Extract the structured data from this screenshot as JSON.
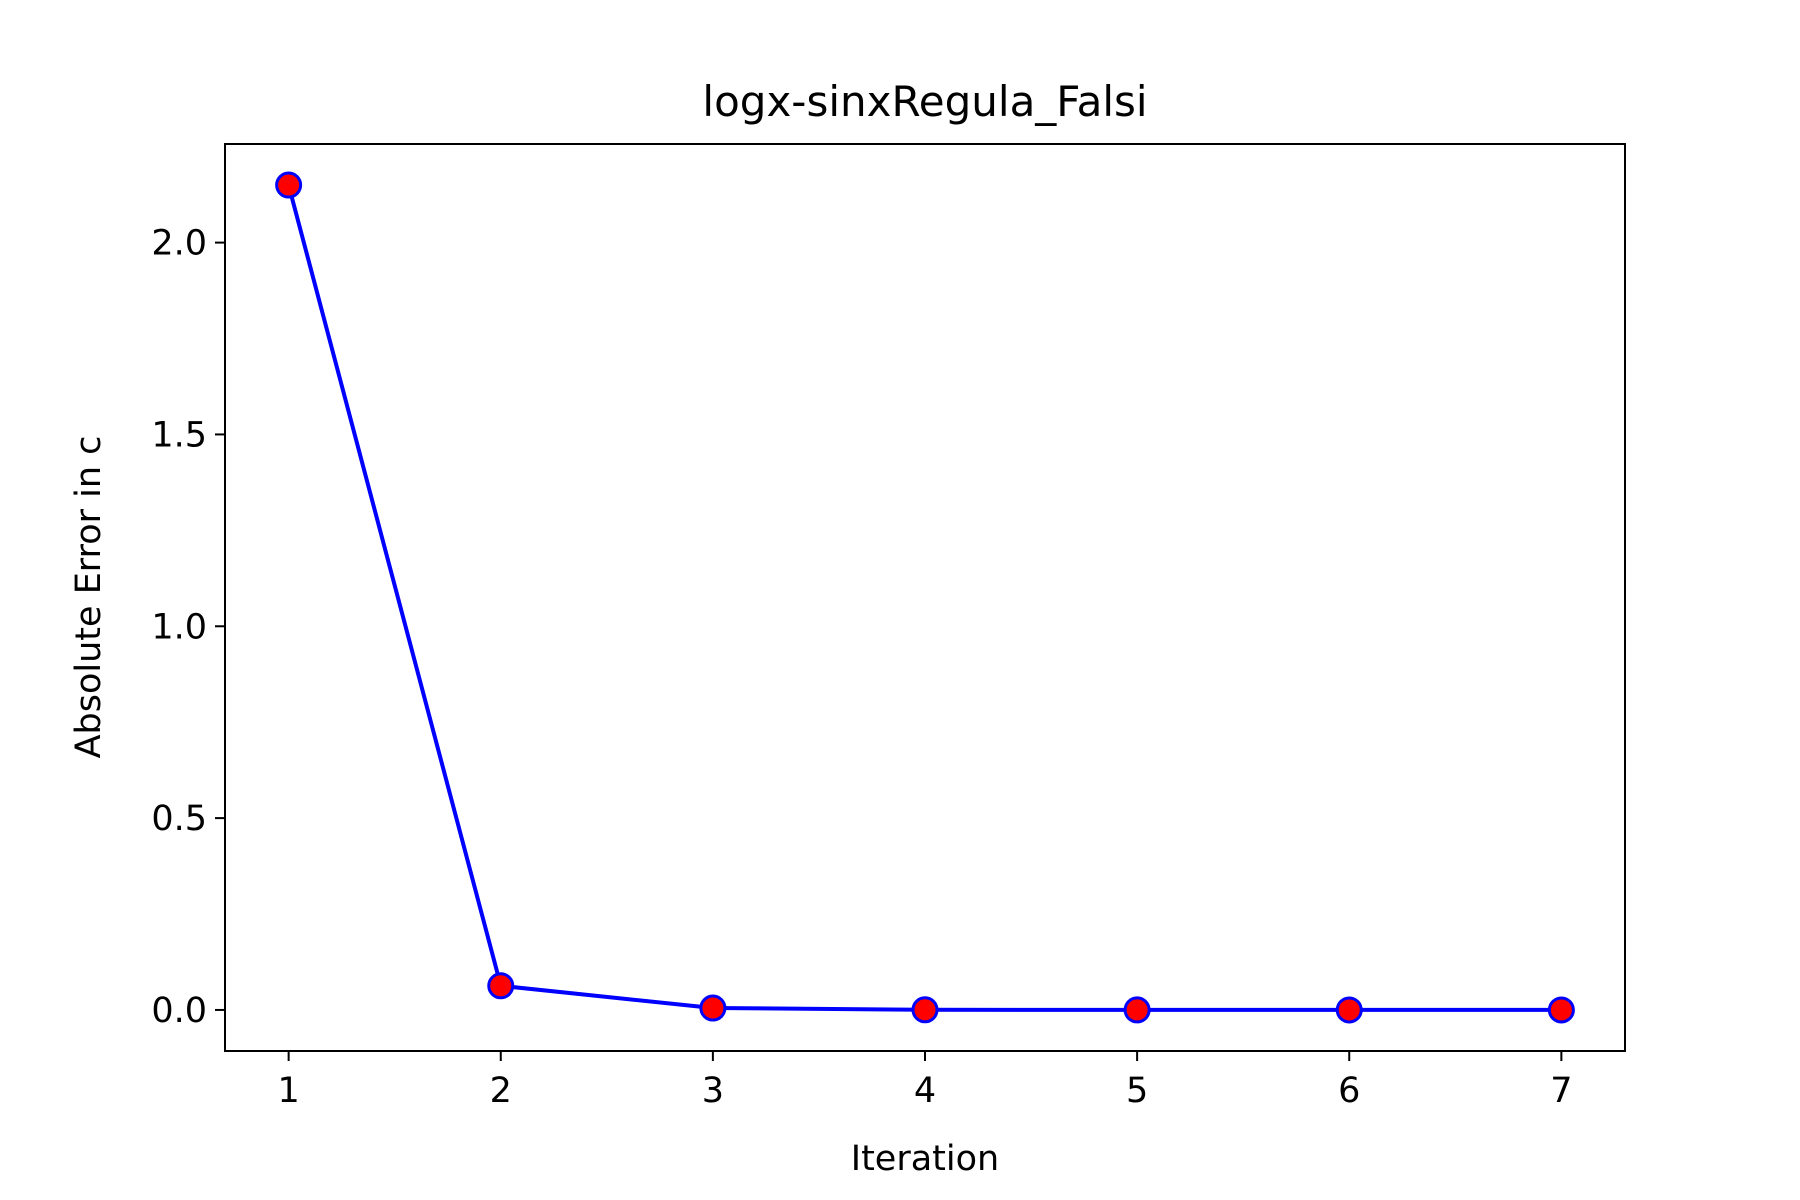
{
  "chart_data": {
    "type": "line",
    "title": "logx-sinxRegula_Falsi",
    "xlabel": "Iteration",
    "ylabel": "Absolute Error in c",
    "x": [
      1,
      2,
      3,
      4,
      5,
      6,
      7
    ],
    "series": [
      {
        "values": [
          2.15,
          0.063,
          0.005,
          0.0004,
          3e-05,
          2e-06,
          2e-07
        ],
        "line_color": "#0000ff",
        "marker_face_color": "#ff0000",
        "marker_edge_color": "#0000ff",
        "marker": "circle"
      }
    ],
    "xticks": [
      "1",
      "2",
      "3",
      "4",
      "5",
      "6",
      "7"
    ],
    "yticks": [
      "0.0",
      "0.5",
      "1.0",
      "1.5",
      "2.0"
    ],
    "xlim": [
      0.7,
      7.3
    ],
    "ylim": [
      -0.107,
      2.257
    ],
    "grid": false,
    "legend": "none"
  }
}
